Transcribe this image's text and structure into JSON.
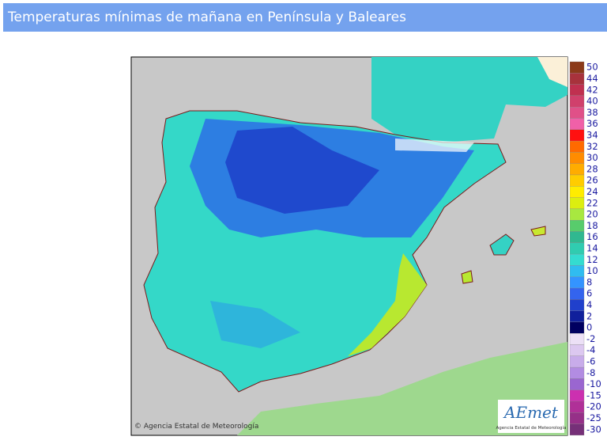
{
  "header": {
    "title": "Temperaturas mínimas de mañana en Península y Baleares"
  },
  "map": {
    "copyright": "© Agencia Estatal de Meteorología",
    "logo": {
      "name": "AEmet",
      "caption": "Agencia Estatal de Meteorología"
    }
  },
  "legend": {
    "labels": [
      50,
      44,
      42,
      40,
      38,
      36,
      34,
      32,
      30,
      28,
      26,
      24,
      22,
      20,
      18,
      16,
      14,
      12,
      10,
      8,
      6,
      4,
      2,
      0,
      -2,
      -4,
      -6,
      -8,
      -10,
      -15,
      -20,
      -25,
      -30
    ],
    "colors": [
      "#8b3a1a",
      "#a8323c",
      "#c03050",
      "#d0406c",
      "#e05088",
      "#f060a8",
      "#ff1010",
      "#ff6a00",
      "#ff8c00",
      "#ffac00",
      "#ffcc00",
      "#ffec00",
      "#dcee10",
      "#a8e840",
      "#58cc6c",
      "#30b890",
      "#30ccb0",
      "#34dcd0",
      "#30bcf0",
      "#3494ff",
      "#3464ee",
      "#2040cc",
      "#10209c",
      "#000060",
      "#ece0f6",
      "#dcc8f0",
      "#c8acea",
      "#b28ce2",
      "#9a66d0",
      "#cc30b0",
      "#b03098",
      "#963088",
      "#763078"
    ]
  }
}
